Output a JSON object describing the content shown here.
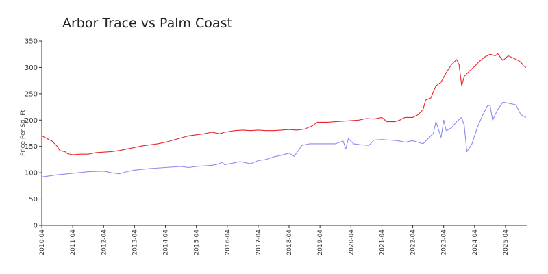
{
  "chart_data": {
    "type": "line",
    "title": "Arbor Trace vs Palm Coast",
    "xlabel": "",
    "ylabel": "Price Per Sq. Ft",
    "ylim": [
      0,
      350
    ],
    "yticks": [
      0,
      50,
      100,
      150,
      200,
      250,
      300,
      350
    ],
    "xlim": [
      "2010-04",
      "2025-12"
    ],
    "xticks": [
      "2010-04",
      "2011-04",
      "2012-04",
      "2013-04",
      "2014-04",
      "2015-04",
      "2016-04",
      "2017-04",
      "2018-04",
      "2019-04",
      "2020-04",
      "2021-04",
      "2022-04",
      "2023-04",
      "2024-04",
      "2025-04"
    ],
    "grid": false,
    "legend": "none",
    "series": [
      {
        "color": "#e8262a",
        "points": [
          [
            "2010-04",
            170
          ],
          [
            "2010-06",
            165
          ],
          [
            "2010-08",
            160
          ],
          [
            "2010-10",
            150
          ],
          [
            "2010-11",
            142
          ],
          [
            "2011-01",
            140
          ],
          [
            "2011-02",
            136
          ],
          [
            "2011-04",
            134
          ],
          [
            "2011-07",
            135
          ],
          [
            "2011-10",
            135
          ],
          [
            "2012-01",
            138
          ],
          [
            "2012-04",
            139
          ],
          [
            "2012-07",
            140
          ],
          [
            "2012-10",
            142
          ],
          [
            "2013-01",
            145
          ],
          [
            "2013-04",
            148
          ],
          [
            "2013-07",
            151
          ],
          [
            "2013-10",
            153
          ],
          [
            "2014-01",
            155
          ],
          [
            "2014-04",
            158
          ],
          [
            "2014-07",
            162
          ],
          [
            "2014-10",
            166
          ],
          [
            "2015-01",
            170
          ],
          [
            "2015-04",
            172
          ],
          [
            "2015-07",
            174
          ],
          [
            "2015-10",
            177
          ],
          [
            "2016-01",
            174
          ],
          [
            "2016-03",
            177
          ],
          [
            "2016-07",
            180
          ],
          [
            "2016-10",
            181
          ],
          [
            "2017-01",
            180
          ],
          [
            "2017-04",
            181
          ],
          [
            "2017-07",
            180
          ],
          [
            "2017-10",
            180
          ],
          [
            "2018-01",
            181
          ],
          [
            "2018-04",
            182
          ],
          [
            "2018-07",
            181
          ],
          [
            "2018-10",
            183
          ],
          [
            "2019-01",
            189
          ],
          [
            "2019-03",
            196
          ],
          [
            "2019-07",
            196
          ],
          [
            "2019-10",
            197
          ],
          [
            "2020-01",
            198
          ],
          [
            "2020-04",
            199
          ],
          [
            "2020-07",
            200
          ],
          [
            "2020-10",
            203
          ],
          [
            "2021-01",
            202
          ],
          [
            "2021-04",
            205
          ],
          [
            "2021-06",
            197
          ],
          [
            "2021-09",
            197
          ],
          [
            "2021-11",
            200
          ],
          [
            "2022-01",
            205
          ],
          [
            "2022-04",
            205
          ],
          [
            "2022-06",
            210
          ],
          [
            "2022-08",
            220
          ],
          [
            "2022-09",
            238
          ],
          [
            "2022-11",
            242
          ],
          [
            "2023-01",
            265
          ],
          [
            "2023-03",
            272
          ],
          [
            "2023-05",
            290
          ],
          [
            "2023-07",
            305
          ],
          [
            "2023-09",
            315
          ],
          [
            "2023-10",
            305
          ],
          [
            "2023-11",
            265
          ],
          [
            "2023-12",
            283
          ],
          [
            "2024-02",
            293
          ],
          [
            "2024-04",
            302
          ],
          [
            "2024-06",
            312
          ],
          [
            "2024-08",
            320
          ],
          [
            "2024-10",
            325
          ],
          [
            "2024-12",
            322
          ],
          [
            "2025-01",
            326
          ],
          [
            "2025-03",
            313
          ],
          [
            "2025-05",
            322
          ],
          [
            "2025-07",
            318
          ],
          [
            "2025-09",
            313
          ],
          [
            "2025-10",
            310
          ],
          [
            "2025-11",
            303
          ],
          [
            "2025-12",
            300
          ]
        ]
      },
      {
        "color": "#8b8bf0",
        "points": [
          [
            "2010-04",
            92
          ],
          [
            "2010-10",
            96
          ],
          [
            "2011-04",
            99
          ],
          [
            "2011-10",
            102
          ],
          [
            "2012-04",
            103
          ],
          [
            "2012-07",
            100
          ],
          [
            "2012-10",
            98
          ],
          [
            "2013-01",
            102
          ],
          [
            "2013-04",
            105
          ],
          [
            "2013-10",
            108
          ],
          [
            "2014-04",
            110
          ],
          [
            "2014-10",
            112
          ],
          [
            "2015-01",
            110
          ],
          [
            "2015-04",
            112
          ],
          [
            "2015-07",
            113
          ],
          [
            "2015-10",
            114
          ],
          [
            "2016-01",
            117
          ],
          [
            "2016-02",
            120
          ],
          [
            "2016-03",
            115
          ],
          [
            "2016-06",
            118
          ],
          [
            "2016-09",
            121
          ],
          [
            "2017-01",
            117
          ],
          [
            "2017-04",
            123
          ],
          [
            "2017-07",
            125
          ],
          [
            "2017-10",
            130
          ],
          [
            "2018-01",
            133
          ],
          [
            "2018-04",
            137
          ],
          [
            "2018-06",
            131
          ],
          [
            "2018-09",
            152
          ],
          [
            "2018-12",
            155
          ],
          [
            "2019-04",
            155
          ],
          [
            "2019-07",
            155
          ],
          [
            "2019-10",
            155
          ],
          [
            "2020-01",
            160
          ],
          [
            "2020-02",
            145
          ],
          [
            "2020-03",
            165
          ],
          [
            "2020-05",
            155
          ],
          [
            "2020-08",
            153
          ],
          [
            "2020-11",
            152
          ],
          [
            "2021-01",
            162
          ],
          [
            "2021-04",
            163
          ],
          [
            "2021-07",
            162
          ],
          [
            "2021-10",
            161
          ],
          [
            "2022-01",
            158
          ],
          [
            "2022-04",
            161
          ],
          [
            "2022-06",
            158
          ],
          [
            "2022-08",
            155
          ],
          [
            "2022-10",
            165
          ],
          [
            "2022-12",
            175
          ],
          [
            "2023-01",
            197
          ],
          [
            "2023-03",
            167
          ],
          [
            "2023-04",
            200
          ],
          [
            "2023-05",
            180
          ],
          [
            "2023-07",
            185
          ],
          [
            "2023-09",
            197
          ],
          [
            "2023-11",
            205
          ],
          [
            "2023-12",
            190
          ],
          [
            "2024-01",
            140
          ],
          [
            "2024-03",
            155
          ],
          [
            "2024-05",
            185
          ],
          [
            "2024-07",
            208
          ],
          [
            "2024-09",
            227
          ],
          [
            "2024-10",
            228
          ],
          [
            "2024-11",
            200
          ],
          [
            "2025-01",
            220
          ],
          [
            "2025-03",
            234
          ],
          [
            "2025-05",
            232
          ],
          [
            "2025-08",
            229
          ],
          [
            "2025-10",
            210
          ],
          [
            "2025-12",
            205
          ]
        ]
      }
    ]
  }
}
